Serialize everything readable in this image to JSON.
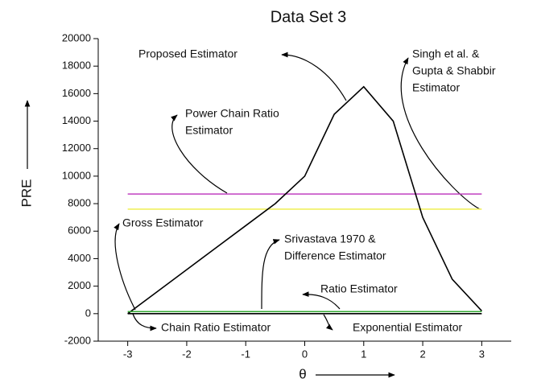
{
  "chart_data": {
    "type": "line",
    "title": "Data Set 3",
    "xlabel": "θ",
    "ylabel": "PRE",
    "x": [
      -3,
      -2.5,
      -2,
      -1.5,
      -1,
      -0.5,
      0,
      0.5,
      1,
      1.5,
      2,
      2.5,
      3
    ],
    "series": [
      {
        "color": "#c040c0",
        "values": [
          8700,
          8700,
          8700,
          8700,
          8700,
          8700,
          8700,
          8700,
          8700,
          8700,
          8700,
          8700,
          8700
        ]
      },
      {
        "color": "#f0f060",
        "values": [
          7600,
          7600,
          7600,
          7600,
          7600,
          7600,
          7600,
          7600,
          7600,
          7600,
          7600,
          7600,
          7600
        ]
      },
      {
        "color": "#000000",
        "values": [
          0,
          1600,
          3200,
          4800,
          6400,
          8000,
          10000,
          14500,
          16500,
          14000,
          7000,
          2500,
          200
        ]
      },
      {
        "color": "#000000",
        "values": [
          0,
          0,
          0,
          0,
          0,
          0,
          0,
          0,
          0,
          0,
          0,
          0,
          0
        ]
      },
      {
        "color": "#33aa33",
        "values": [
          150,
          150,
          150,
          150,
          150,
          150,
          150,
          150,
          150,
          150,
          150,
          150,
          150
        ]
      }
    ],
    "xlim": [
      -3.5,
      3.5
    ],
    "ylim": [
      -2000,
      20000
    ],
    "xticks": [
      -3,
      -2,
      -1,
      0,
      1,
      2,
      3
    ],
    "yticks": [
      -2000,
      0,
      2000,
      4000,
      6000,
      8000,
      10000,
      12000,
      14000,
      16000,
      18000,
      20000
    ],
    "annotations": [
      {
        "lines": [
          "Proposed Estimator"
        ]
      },
      {
        "lines": [
          "Singh et al. &",
          "Gupta & Shabbir",
          "Estimator"
        ]
      },
      {
        "lines": [
          "Power Chain Ratio",
          "Estimator"
        ]
      },
      {
        "lines": [
          "Gross Estimator"
        ]
      },
      {
        "lines": [
          "Srivastava 1970 &",
          "Difference Estimator"
        ]
      },
      {
        "lines": [
          "Ratio Estimator"
        ]
      },
      {
        "lines": [
          "Chain Ratio Estimator"
        ]
      },
      {
        "lines": [
          "Exponential Estimator"
        ]
      }
    ]
  }
}
